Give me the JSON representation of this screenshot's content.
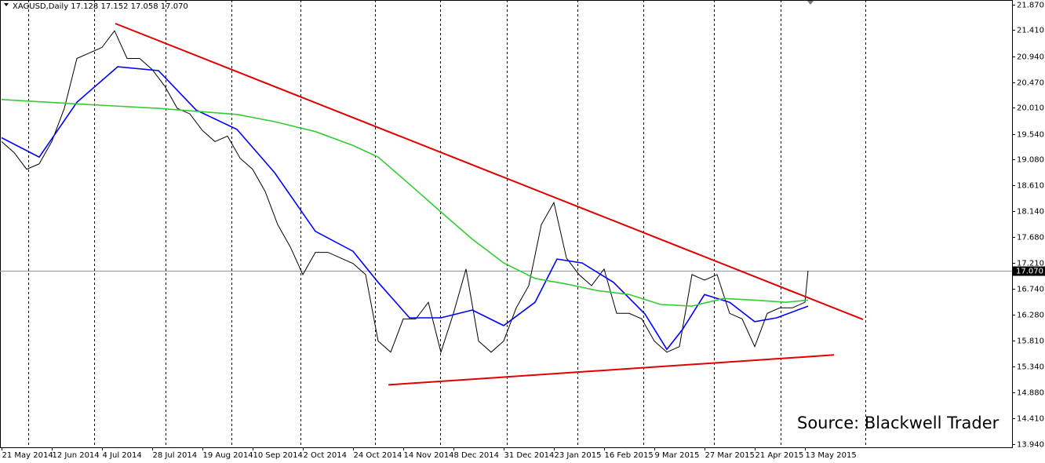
{
  "chart_data": {
    "type": "line",
    "title": "XAGUSD,Daily  17.128 17.152 17.058 17.070",
    "annotation": "Source: Blackwell Trader",
    "xlim": [
      -0.5,
      322
    ],
    "ylim": [
      13.883,
      21.955
    ],
    "xticks": [
      {
        "value": 0,
        "label": "21 May 2014"
      },
      {
        "value": 16,
        "label": "12 Jun 2014"
      },
      {
        "value": 32,
        "label": "4 Jul 2014"
      },
      {
        "value": 48,
        "label": "28 Jul 2014"
      },
      {
        "value": 64,
        "label": "19 Aug 2014"
      },
      {
        "value": 80,
        "label": "10 Sep 2014"
      },
      {
        "value": 96,
        "label": "2 Oct 2014"
      },
      {
        "value": 112,
        "label": "24 Oct 2014"
      },
      {
        "value": 128,
        "label": "14 Nov 2014"
      },
      {
        "value": 144,
        "label": "8 Dec 2014"
      },
      {
        "value": 160,
        "label": "31 Dec 2014"
      },
      {
        "value": 176,
        "label": "23 Jan 2015"
      },
      {
        "value": 192,
        "label": "16 Feb 2015"
      },
      {
        "value": 208,
        "label": "9 Mar 2015"
      },
      {
        "value": 224,
        "label": "27 Mar 2015"
      },
      {
        "value": 240,
        "label": "21 Apr 2015"
      },
      {
        "value": 256,
        "label": "13 May 2015"
      }
    ],
    "yticks": [
      {
        "value": 21.87,
        "label": "21.870"
      },
      {
        "value": 21.41,
        "label": "21.410"
      },
      {
        "value": 20.94,
        "label": "20.940"
      },
      {
        "value": 20.47,
        "label": "20.470"
      },
      {
        "value": 20.01,
        "label": "20.010"
      },
      {
        "value": 19.54,
        "label": "19.540"
      },
      {
        "value": 19.08,
        "label": "19.080"
      },
      {
        "value": 18.61,
        "label": "18.610"
      },
      {
        "value": 18.14,
        "label": "18.140"
      },
      {
        "value": 17.68,
        "label": "17.680"
      },
      {
        "value": 17.21,
        "label": "17.210"
      },
      {
        "value": 16.74,
        "label": "16.740"
      },
      {
        "value": 16.28,
        "label": "16.280"
      },
      {
        "value": 15.81,
        "label": "15.810"
      },
      {
        "value": 15.34,
        "label": "15.340"
      },
      {
        "value": 14.88,
        "label": "14.880"
      },
      {
        "value": 14.41,
        "label": "14.410"
      },
      {
        "value": 13.94,
        "label": "13.940"
      }
    ],
    "month_separators": [
      8.5,
      29.5,
      52.25,
      73.25,
      95.25,
      119,
      139.75,
      161,
      183.5,
      204.5,
      227,
      248.25,
      275.25
    ],
    "price_line": {
      "value": 17.07,
      "label": "17.070"
    },
    "series": [
      {
        "color": "#000000",
        "x": [
          0,
          4,
          8,
          12,
          16,
          20,
          24,
          28,
          32,
          36,
          40,
          44,
          48,
          52,
          56,
          60,
          64,
          68,
          72,
          76,
          80,
          84,
          88,
          92,
          96,
          100,
          104,
          108,
          112,
          116,
          120,
          124,
          128,
          132,
          136,
          140,
          144,
          148,
          152,
          156,
          160,
          164,
          168,
          172,
          176,
          180,
          184,
          188,
          192,
          196,
          200,
          204,
          208,
          212,
          216,
          220,
          224,
          228,
          232,
          236,
          240,
          244,
          248,
          252,
          256,
          257
        ],
        "values": [
          19.4,
          19.2,
          18.9,
          19.0,
          19.4,
          20.0,
          20.9,
          21.0,
          21.1,
          21.4,
          20.9,
          20.9,
          20.7,
          20.4,
          20.0,
          19.9,
          19.6,
          19.4,
          19.5,
          19.1,
          18.9,
          18.5,
          17.9,
          17.5,
          17.0,
          17.4,
          17.4,
          17.3,
          17.2,
          17.0,
          15.8,
          15.6,
          16.2,
          16.2,
          16.5,
          15.6,
          16.3,
          17.1,
          15.8,
          15.6,
          15.8,
          16.4,
          16.8,
          17.9,
          18.3,
          17.3,
          17.0,
          16.8,
          17.1,
          16.3,
          16.3,
          16.2,
          15.8,
          15.6,
          15.7,
          17.0,
          16.9,
          17.0,
          16.3,
          16.2,
          15.7,
          16.3,
          16.4,
          16.4,
          16.5,
          17.07
        ]
      },
      {
        "color": "#0000ff",
        "x": [
          0,
          12,
          24,
          37,
          50,
          62,
          75,
          87,
          100,
          112,
          120,
          130,
          140,
          150,
          160,
          170,
          177,
          185,
          195,
          205,
          212,
          217,
          224,
          232,
          240,
          247,
          257
        ],
        "values": [
          19.47,
          19.12,
          20.11,
          20.75,
          20.68,
          19.97,
          19.62,
          18.84,
          17.78,
          17.42,
          16.86,
          16.22,
          16.22,
          16.36,
          16.08,
          16.5,
          17.28,
          17.21,
          16.86,
          16.29,
          15.65,
          16.01,
          16.64,
          16.5,
          16.15,
          16.22,
          16.43
        ]
      },
      {
        "color": "#33cc33",
        "x": [
          0,
          24,
          50,
          75,
          87,
          100,
          112,
          120,
          130,
          140,
          150,
          160,
          170,
          180,
          190,
          200,
          210,
          220,
          230,
          240,
          250,
          257
        ],
        "values": [
          20.16,
          20.08,
          20.0,
          19.89,
          19.76,
          19.58,
          19.33,
          19.12,
          18.63,
          18.13,
          17.64,
          17.21,
          16.93,
          16.83,
          16.71,
          16.64,
          16.46,
          16.43,
          16.57,
          16.54,
          16.5,
          16.54
        ]
      }
    ],
    "trendlines": [
      {
        "color": "#e00000",
        "x": [
          36.25,
          274.5
        ],
        "values": [
          21.53,
          16.19
        ]
      },
      {
        "color": "#e00000",
        "x": [
          123.25,
          265.25
        ],
        "values": [
          15.01,
          15.55
        ]
      }
    ]
  }
}
